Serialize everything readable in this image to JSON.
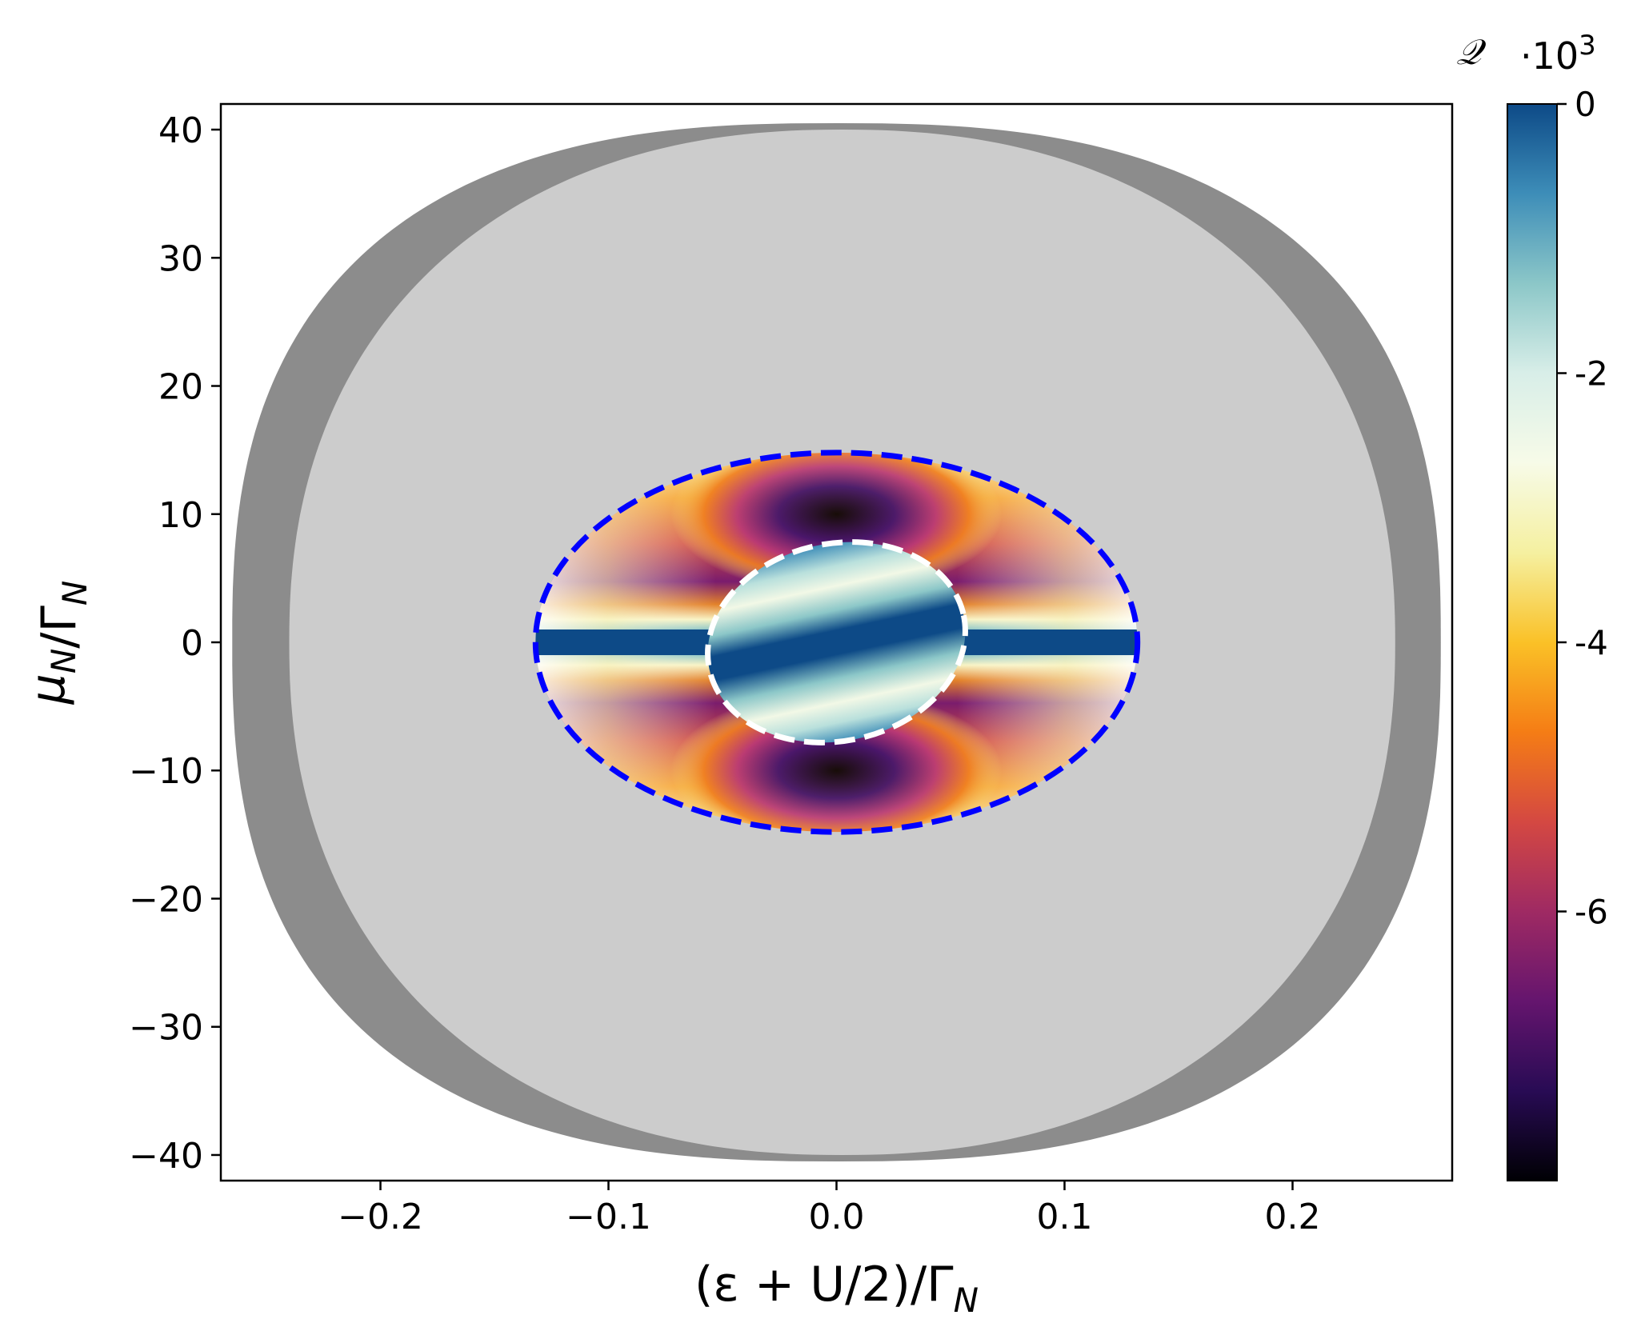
{
  "chart_data": {
    "type": "heatmap",
    "xlabel": "(ε + U/2)/Γ_N",
    "ylabel": "μ_N/Γ_N",
    "xlim": [
      -0.27,
      0.27
    ],
    "ylim": [
      -42,
      42
    ],
    "x_ticks": [
      -0.2,
      -0.1,
      0.0,
      0.1,
      0.2
    ],
    "x_tick_labels": [
      "−0.2",
      "−0.1",
      "0.0",
      "0.1",
      "0.2"
    ],
    "y_ticks": [
      40,
      30,
      20,
      10,
      0,
      -10,
      -20,
      -30,
      -40
    ],
    "y_tick_labels": [
      "40",
      "30",
      "20",
      "10",
      "0",
      "−10",
      "−20",
      "−30",
      "−40"
    ],
    "grid": false,
    "colorbar": {
      "title": "𝒬",
      "multiplier": "·10",
      "multiplier_exponent": "3",
      "range": [
        -8.0,
        0
      ],
      "ticks": [
        0,
        -2,
        -4,
        -6
      ],
      "tick_labels": [
        "0",
        "-2",
        "-4",
        "-6"
      ],
      "colormap": [
        "#000004",
        "#280b54",
        "#65156e",
        "#9f2a63",
        "#d44842",
        "#f57d15",
        "#fac127",
        "#f5f0a0",
        "#f7fbe8",
        "#d8eee8",
        "#8cc7c8",
        "#3d8db8",
        "#0d4a87"
      ]
    },
    "regions": [
      {
        "name": "outer-dark-gray-region",
        "color": "#8c8c8c",
        "x_extent": [
          -0.265,
          0.265
        ],
        "y_extent": [
          -40.5,
          40.5
        ]
      },
      {
        "name": "light-gray-region",
        "color": "#cccccc",
        "x_extent": [
          -0.24,
          0.245
        ],
        "y_extent": [
          -40,
          40
        ]
      },
      {
        "name": "outer-ellipse-blue-dashed",
        "color": "#0000ff",
        "center": [
          0.0,
          0.0
        ],
        "x_semi": 0.132,
        "y_semi": 14.8
      },
      {
        "name": "inner-ellipse-white-dashed",
        "color": "#ffffff",
        "center": [
          0.0,
          0.0
        ],
        "x_semi": 0.057,
        "y_semi": 7.7,
        "tilt_deg": 12
      }
    ],
    "minima": [
      {
        "x": 0.0,
        "y": 10,
        "value": -7.9
      },
      {
        "x": 0.0,
        "y": -10,
        "value": -7.9
      }
    ]
  }
}
